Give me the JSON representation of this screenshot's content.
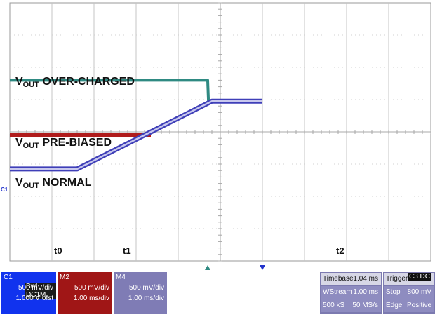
{
  "chart_data": {
    "type": "line",
    "title": "",
    "xlabel": "",
    "ylabel": "",
    "grid": true,
    "x_divisions": 10,
    "y_divisions": 8,
    "time_markers": [
      {
        "label": "t0",
        "x": 0.6
      },
      {
        "label": "t1",
        "x": 1.6
      },
      {
        "label": "t2",
        "x": 4.7
      }
    ],
    "series": [
      {
        "name": "OVER-CHARGED",
        "color": "#2f8a82",
        "x": [
          0,
          4.7,
          4.72,
          4.85,
          6.0
        ],
        "y": [
          5.6,
          5.6,
          4.9,
          4.95,
          4.95
        ]
      },
      {
        "name": "PRE-BIASED",
        "color": "#b01c1c",
        "x": [
          0,
          3.35
        ],
        "y": [
          3.9,
          3.9
        ]
      },
      {
        "name": "NORMAL",
        "color": "#3f3fb8",
        "x": [
          0,
          1.6,
          4.8,
          6.0
        ],
        "y": [
          2.85,
          2.85,
          4.95,
          4.95
        ]
      }
    ]
  },
  "annotations": {
    "over_prefix": "V",
    "over_sub": "OUT",
    "over_text": " OVER-CHARGED",
    "pre_prefix": "V",
    "pre_sub": "OUT",
    "pre_text": " PRE-BIASED",
    "norm_prefix": "V",
    "norm_sub": "OUT",
    "norm_text": " NORMAL",
    "t0": "t0",
    "t1": "t1",
    "t2": "t2",
    "ch_marker": "C1"
  },
  "panels": {
    "c1": {
      "title": "C1",
      "tag": "BwL DC1M",
      "line1": "500 mV/div",
      "line2": "1.000 V ofst",
      "color": "#1133ee"
    },
    "m2": {
      "title": "M2",
      "line1": "500 mV/div",
      "line2": "1.00 ms/div",
      "color": "#a01616"
    },
    "m4": {
      "title": "M4",
      "line1": "500 mV/div",
      "line2": "1.00 ms/div",
      "color": "#7f7cb5"
    },
    "timebase": {
      "label": "Timebase",
      "value": "1.04 ms",
      "r2a": "WStream",
      "r2b": "1.00 ms",
      "r3a": "500 kS",
      "r3b": "50 MS/s"
    },
    "trigger": {
      "label": "Trigger",
      "tag": "C3 DC",
      "r2a": "Stop",
      "r2b": "800 mV",
      "r3a": "Edge",
      "r3b": "Positive"
    }
  }
}
